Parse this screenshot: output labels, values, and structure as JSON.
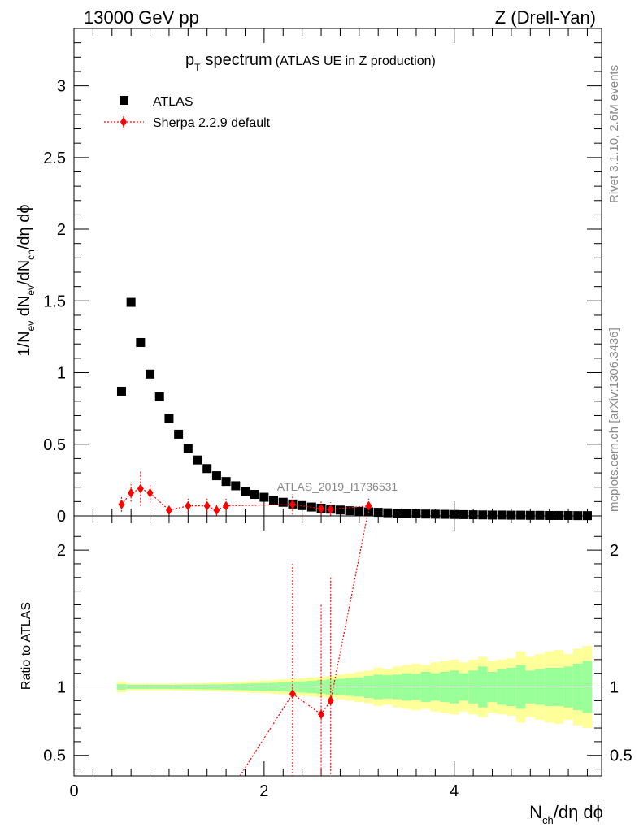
{
  "header": {
    "left": "13000 GeV pp",
    "right": "Z (Drell-Yan)"
  },
  "side_text": {
    "rivet": "Rivet 3.1.10,  2.6M events",
    "mcplots": "mcplots.cern.ch [arXiv:1306.3436]"
  },
  "watermark": "ATLAS_2019_I1736531",
  "colors": {
    "data": "#000000",
    "mc": "#ff0000",
    "band_inner": "#99ff99",
    "band_outer": "#ffff99"
  },
  "chart_data": [
    {
      "type": "scatter",
      "title_main": "p",
      "title_sub": "T",
      "title_rest": "spectrum",
      "title_note": "(ATLAS UE in Z production)",
      "ylabel": {
        "a": "1/N",
        "a_sub": "ev",
        "b": " dN",
        "b_sub": "ev",
        "c": "/dN",
        "c_sub": "ch",
        "d": "/dη dϕ"
      },
      "xlim": [
        0,
        5.55
      ],
      "ylim": [
        0,
        3.4
      ],
      "yticks": [
        {
          "v": 0,
          "label": "0"
        },
        {
          "v": 0.5,
          "label": "0.5"
        },
        {
          "v": 1,
          "label": "1"
        },
        {
          "v": 1.5,
          "label": "1.5"
        },
        {
          "v": 2,
          "label": "2"
        },
        {
          "v": 2.5,
          "label": "2.5"
        },
        {
          "v": 3,
          "label": "3"
        }
      ],
      "legend": [
        {
          "name": "ATLAS",
          "marker": "square"
        },
        {
          "name": "Sherpa 2.2.9 default",
          "marker": "diamond"
        }
      ],
      "series": [
        {
          "name": "ATLAS",
          "x": [
            0.5,
            0.6,
            0.7,
            0.8,
            0.9,
            1.0,
            1.1,
            1.2,
            1.3,
            1.4,
            1.5,
            1.6,
            1.7,
            1.8,
            1.9,
            2.0,
            2.1,
            2.2,
            2.3,
            2.4,
            2.5,
            2.6,
            2.7,
            2.8,
            2.9,
            3.0,
            3.1,
            3.2,
            3.3,
            3.4,
            3.5,
            3.6,
            3.7,
            3.8,
            3.9,
            4.0,
            4.1,
            4.2,
            4.3,
            4.4,
            4.5,
            4.6,
            4.7,
            4.8,
            4.9,
            5.0,
            5.1,
            5.2,
            5.3,
            5.4
          ],
          "y": [
            0.87,
            1.49,
            1.21,
            0.99,
            0.83,
            0.68,
            0.57,
            0.47,
            0.39,
            0.33,
            0.28,
            0.24,
            0.21,
            0.17,
            0.15,
            0.13,
            0.11,
            0.095,
            0.083,
            0.072,
            0.062,
            0.054,
            0.047,
            0.041,
            0.036,
            0.032,
            0.028,
            0.025,
            0.022,
            0.019,
            0.017,
            0.015,
            0.013,
            0.012,
            0.011,
            0.01,
            0.009,
            0.008,
            0.007,
            0.006,
            0.006,
            0.005,
            0.005,
            0.004,
            0.004,
            0.003,
            0.003,
            0.003,
            0.002,
            0.002
          ]
        },
        {
          "name": "Sherpa 2.2.9 default",
          "x": [
            0.5,
            0.6,
            0.7,
            0.8,
            1.0,
            1.2,
            1.4,
            1.5,
            1.6,
            2.3,
            2.6,
            2.7,
            3.1
          ],
          "y": [
            0.08,
            0.16,
            0.19,
            0.16,
            0.04,
            0.07,
            0.07,
            0.04,
            0.07,
            0.08,
            0.05,
            0.045,
            0.07
          ],
          "err": [
            0.05,
            0.06,
            0.12,
            0.07,
            0.03,
            0.05,
            0.05,
            0.04,
            0.05,
            0.07,
            0.05,
            0.05,
            0.05
          ]
        }
      ]
    },
    {
      "type": "line",
      "ylabel": "Ratio to ATLAS",
      "xlabel": {
        "a": "N",
        "a_sub": "ch",
        "b": "/dη dϕ"
      },
      "xlim": [
        0,
        5.55
      ],
      "ylim": [
        0.35,
        2.25
      ],
      "xticks": [
        {
          "v": 0,
          "label": "0"
        },
        {
          "v": 2,
          "label": "2"
        },
        {
          "v": 4,
          "label": "4"
        }
      ],
      "yticks": [
        {
          "v": 0.5,
          "label": "0.5"
        },
        {
          "v": 1,
          "label": "1"
        },
        {
          "v": 2,
          "label": "2"
        }
      ],
      "band_x": [
        0.45,
        0.55,
        0.65,
        0.75,
        0.85,
        0.95,
        1.05,
        1.15,
        1.25,
        1.35,
        1.45,
        1.55,
        1.65,
        1.75,
        1.85,
        1.95,
        2.05,
        2.15,
        2.25,
        2.35,
        2.45,
        2.55,
        2.65,
        2.75,
        2.85,
        2.95,
        3.05,
        3.15,
        3.25,
        3.35,
        3.45,
        3.55,
        3.65,
        3.75,
        3.85,
        3.95,
        4.05,
        4.15,
        4.25,
        4.35,
        4.45,
        4.55,
        4.65,
        4.75,
        4.85,
        4.95,
        5.05,
        5.15,
        5.25,
        5.35,
        5.45
      ],
      "band_inner": [
        0.02,
        0.015,
        0.015,
        0.015,
        0.015,
        0.015,
        0.016,
        0.016,
        0.017,
        0.018,
        0.019,
        0.02,
        0.022,
        0.024,
        0.026,
        0.028,
        0.03,
        0.033,
        0.036,
        0.04,
        0.045,
        0.05,
        0.055,
        0.06,
        0.065,
        0.07,
        0.08,
        0.09,
        0.085,
        0.09,
        0.1,
        0.095,
        0.11,
        0.1,
        0.11,
        0.12,
        0.1,
        0.12,
        0.15,
        0.11,
        0.13,
        0.14,
        0.16,
        0.12,
        0.13,
        0.14,
        0.14,
        0.15,
        0.17,
        0.19
      ],
      "band_outer": [
        0.04,
        0.025,
        0.025,
        0.025,
        0.025,
        0.025,
        0.026,
        0.027,
        0.028,
        0.03,
        0.032,
        0.034,
        0.037,
        0.04,
        0.043,
        0.046,
        0.05,
        0.055,
        0.06,
        0.065,
        0.07,
        0.075,
        0.08,
        0.09,
        0.1,
        0.11,
        0.12,
        0.14,
        0.13,
        0.15,
        0.16,
        0.17,
        0.16,
        0.18,
        0.19,
        0.2,
        0.18,
        0.2,
        0.22,
        0.19,
        0.2,
        0.21,
        0.26,
        0.22,
        0.24,
        0.26,
        0.27,
        0.24,
        0.28,
        0.3
      ],
      "mc_ratio": {
        "x": [
          1.7,
          2.3,
          2.6,
          2.7,
          3.1
        ],
        "y": [
          0.3,
          0.95,
          0.8,
          0.9,
          2.3
        ],
        "err": [
          0,
          0.95,
          0.8,
          0.9,
          0
        ],
        "markers": [
          false,
          true,
          true,
          true,
          false
        ]
      }
    }
  ]
}
